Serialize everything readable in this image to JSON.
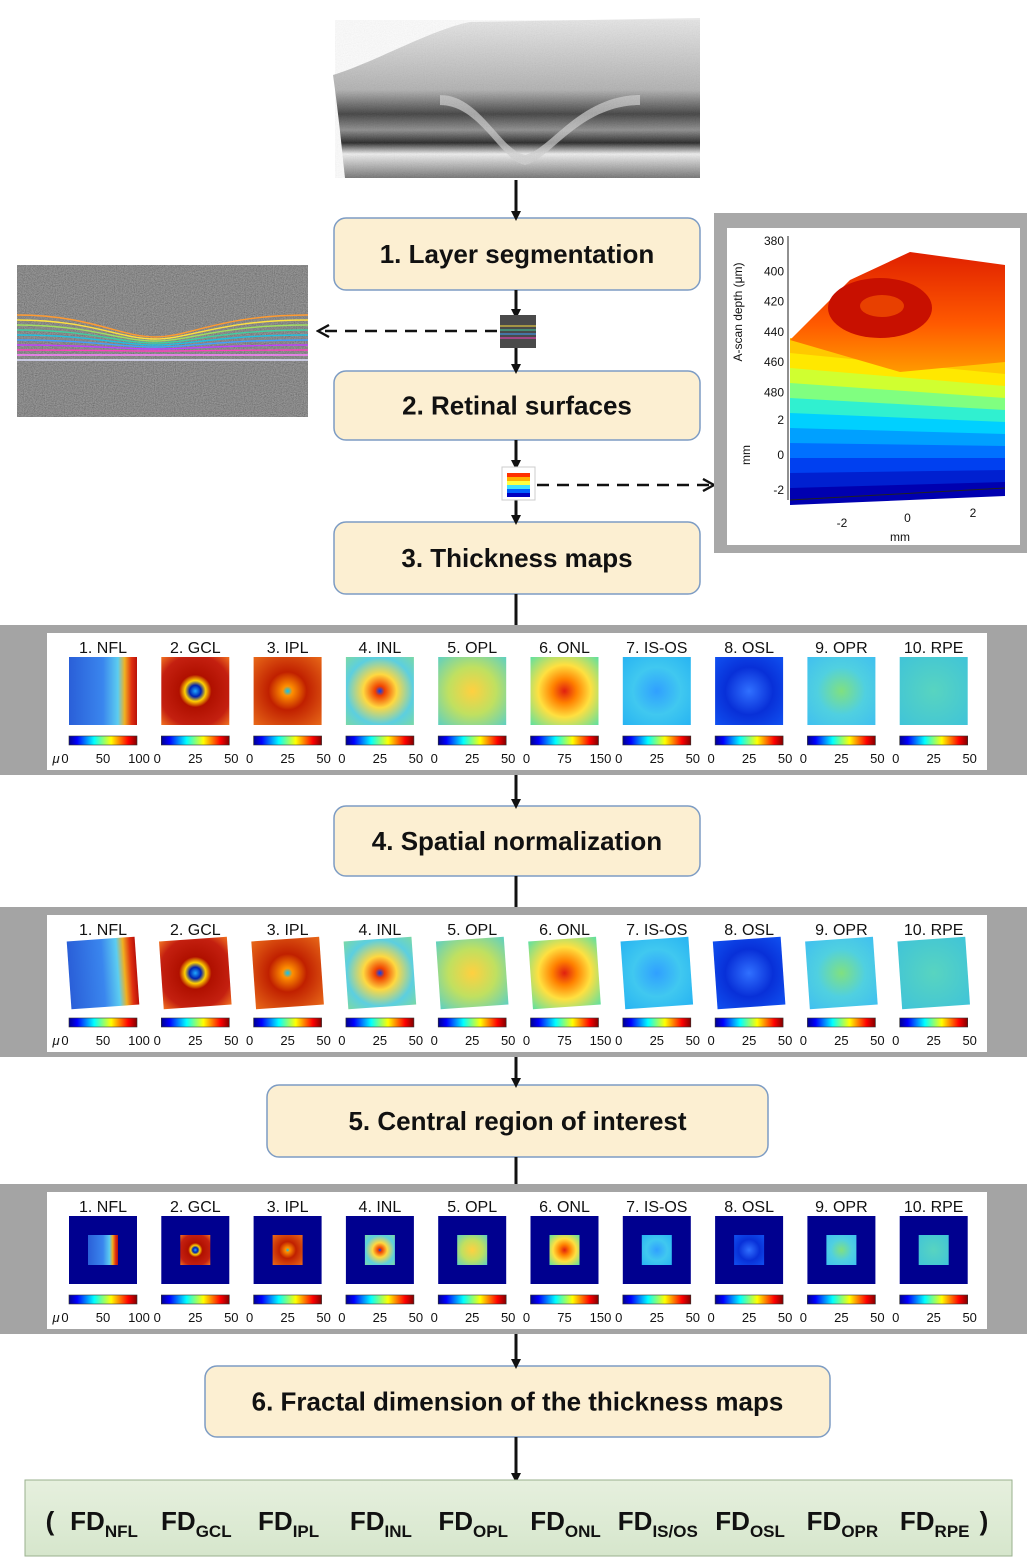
{
  "steps": [
    "1. Layer segmentation",
    "2. Retinal surfaces",
    "3. Thickness maps",
    "4. Spatial normalization",
    "5. Central region of interest",
    "6. Fractal dimension of the thickness maps"
  ],
  "surface_plot": {
    "depth_label": "A-scan depth (μm)",
    "depth_ticks": [
      "380",
      "400",
      "420",
      "440",
      "460",
      "480"
    ],
    "y_label": "mm",
    "y_ticks": [
      "2",
      "0",
      "-2"
    ],
    "x_label": "mm",
    "x_ticks": [
      "-2",
      "0",
      "2"
    ]
  },
  "map_panels": [
    {
      "unit": "μ",
      "maps": [
        {
          "title": "1. NFL",
          "ticks": [
            "0",
            "50",
            "100"
          ]
        },
        {
          "title": "2. GCL",
          "ticks": [
            "0",
            "25",
            "50"
          ]
        },
        {
          "title": "3. IPL",
          "ticks": [
            "0",
            "25",
            "50"
          ]
        },
        {
          "title": "4. INL",
          "ticks": [
            "0",
            "25",
            "50"
          ]
        },
        {
          "title": "5. OPL",
          "ticks": [
            "0",
            "25",
            "50"
          ]
        },
        {
          "title": "6. ONL",
          "ticks": [
            "0",
            "75",
            "150"
          ]
        },
        {
          "title": "7. IS-OS",
          "ticks": [
            "0",
            "25",
            "50"
          ]
        },
        {
          "title": "8. OSL",
          "ticks": [
            "0",
            "25",
            "50"
          ]
        },
        {
          "title": "9. OPR",
          "ticks": [
            "0",
            "25",
            "50"
          ]
        },
        {
          "title": "10. RPE",
          "ticks": [
            "0",
            "25",
            "50"
          ]
        }
      ]
    },
    {
      "unit": "μ",
      "maps": [
        {
          "title": "1. NFL",
          "ticks": [
            "0",
            "50",
            "100"
          ]
        },
        {
          "title": "2. GCL",
          "ticks": [
            "0",
            "25",
            "50"
          ]
        },
        {
          "title": "3. IPL",
          "ticks": [
            "0",
            "25",
            "50"
          ]
        },
        {
          "title": "4. INL",
          "ticks": [
            "0",
            "25",
            "50"
          ]
        },
        {
          "title": "5. OPL",
          "ticks": [
            "0",
            "25",
            "50"
          ]
        },
        {
          "title": "6. ONL",
          "ticks": [
            "0",
            "75",
            "150"
          ]
        },
        {
          "title": "7. IS-OS",
          "ticks": [
            "0",
            "25",
            "50"
          ]
        },
        {
          "title": "8. OSL",
          "ticks": [
            "0",
            "25",
            "50"
          ]
        },
        {
          "title": "9. OPR",
          "ticks": [
            "0",
            "25",
            "50"
          ]
        },
        {
          "title": "10. RPE",
          "ticks": [
            "0",
            "25",
            "50"
          ]
        }
      ]
    },
    {
      "unit": "μ",
      "maps": [
        {
          "title": "1. NFL",
          "ticks": [
            "0",
            "50",
            "100"
          ]
        },
        {
          "title": "2. GCL",
          "ticks": [
            "0",
            "25",
            "50"
          ]
        },
        {
          "title": "3. IPL",
          "ticks": [
            "0",
            "25",
            "50"
          ]
        },
        {
          "title": "4. INL",
          "ticks": [
            "0",
            "25",
            "50"
          ]
        },
        {
          "title": "5. OPL",
          "ticks": [
            "0",
            "25",
            "50"
          ]
        },
        {
          "title": "6. ONL",
          "ticks": [
            "0",
            "75",
            "150"
          ]
        },
        {
          "title": "7. IS-OS",
          "ticks": [
            "0",
            "25",
            "50"
          ]
        },
        {
          "title": "8. OSL",
          "ticks": [
            "0",
            "25",
            "50"
          ]
        },
        {
          "title": "9. OPR",
          "ticks": [
            "0",
            "25",
            "50"
          ]
        },
        {
          "title": "10. RPE",
          "ticks": [
            "0",
            "25",
            "50"
          ]
        }
      ]
    }
  ],
  "features": {
    "open": "(",
    "close": ")",
    "items": [
      {
        "main": "FD",
        "sub": "NFL"
      },
      {
        "main": "FD",
        "sub": "GCL"
      },
      {
        "main": "FD",
        "sub": "IPL"
      },
      {
        "main": "FD",
        "sub": "INL"
      },
      {
        "main": "FD",
        "sub": "OPL"
      },
      {
        "main": "FD",
        "sub": "ONL"
      },
      {
        "main": "FD",
        "sub": "IS/OS"
      },
      {
        "main": "FD",
        "sub": "OSL"
      },
      {
        "main": "FD",
        "sub": "OPR"
      },
      {
        "main": "FD",
        "sub": "RPE"
      }
    ]
  }
}
